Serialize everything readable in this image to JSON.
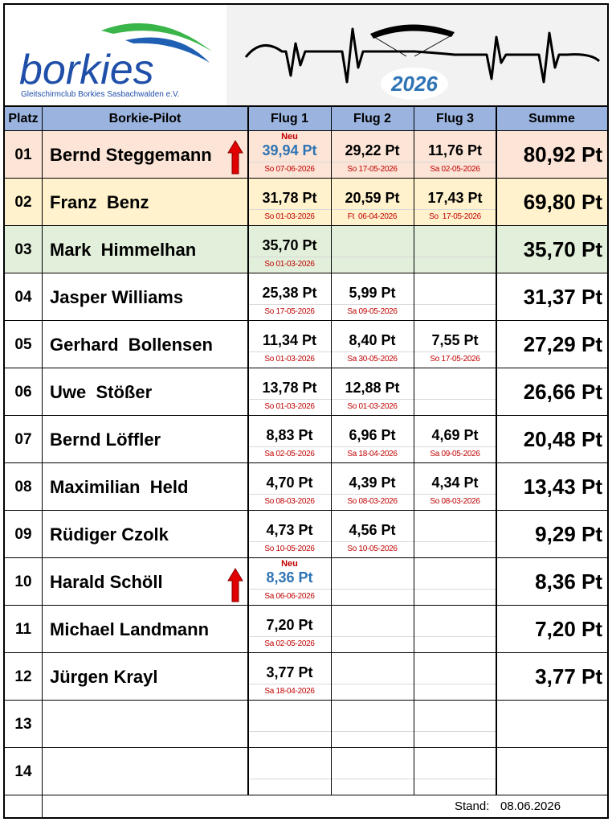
{
  "logo": {
    "name": "borkies",
    "subtitle": "Gleitschirmclub Borkies Sasbachwalden e.V.",
    "year": "2026"
  },
  "table": {
    "headers": [
      "Platz",
      "Borkie-Pilot",
      "Flug 1",
      "Flug 2",
      "Flug 3",
      "Summe"
    ],
    "rows": [
      {
        "platz": "01",
        "pilot": "Bernd Steggemann",
        "flights": [
          {
            "note": "Neu",
            "points": "39,94 Pt",
            "date": "So 07-06-2026"
          },
          {
            "points": "29,22 Pt",
            "date": "So 17-05-2026"
          },
          {
            "points": "11,76 Pt",
            "date": "Sa 02-05-2026"
          }
        ],
        "summe": "80,92 Pt"
      },
      {
        "platz": "02",
        "pilot": "Franz  Benz",
        "flights": [
          {
            "points": "31,78 Pt",
            "date": "So 01-03-2026"
          },
          {
            "points": "20,59 Pt",
            "date": "Ft  06-04-2026"
          },
          {
            "points": "17,43 Pt",
            "date": "So  17-05-2026"
          }
        ],
        "summe": "69,80 Pt"
      },
      {
        "platz": "03",
        "pilot": "Mark  Himmelhan",
        "flights": [
          {
            "points": "35,70 Pt",
            "date": "So 01-03-2026"
          }
        ],
        "summe": "35,70 Pt"
      },
      {
        "platz": "04",
        "pilot": "Jasper Williams",
        "flights": [
          {
            "points": "25,38 Pt",
            "date": "So 17-05-2026"
          },
          {
            "points": "5,99 Pt",
            "date": "Sa 09-05-2026"
          }
        ],
        "summe": "31,37 Pt"
      },
      {
        "platz": "05",
        "pilot": "Gerhard  Bollensen",
        "flights": [
          {
            "points": "11,34 Pt",
            "date": "So 01-03-2026"
          },
          {
            "points": "8,40 Pt",
            "date": "Sa 30-05-2026"
          },
          {
            "points": "7,55 Pt",
            "date": "So 17-05-2026"
          }
        ],
        "summe": "27,29 Pt"
      },
      {
        "platz": "06",
        "pilot": "Uwe  Stößer",
        "flights": [
          {
            "points": "13,78 Pt",
            "date": "So 01-03-2026"
          },
          {
            "points": "12,88 Pt",
            "date": "So 01-03-2026"
          }
        ],
        "summe": "26,66 Pt"
      },
      {
        "platz": "07",
        "pilot": "Bernd Löffler",
        "flights": [
          {
            "points": "8,83 Pt",
            "date": "Sa 02-05-2026"
          },
          {
            "points": "6,96 Pt",
            "date": "Sa 18-04-2026"
          },
          {
            "points": "4,69 Pt",
            "date": "Sa 09-05-2026"
          }
        ],
        "summe": "20,48 Pt"
      },
      {
        "platz": "08",
        "pilot": "Maximilian  Held",
        "flights": [
          {
            "points": "4,70 Pt",
            "date": "So 08-03-2026"
          },
          {
            "points": "4,39 Pt",
            "date": "So 08-03-2026"
          },
          {
            "points": "4,34 Pt",
            "date": "So 08-03-2026"
          }
        ],
        "summe": "13,43 Pt"
      },
      {
        "platz": "09",
        "pilot": "Rüdiger Czolk",
        "flights": [
          {
            "points": "4,73 Pt",
            "date": "So 10-05-2026"
          },
          {
            "points": "4,56 Pt",
            "date": "So 10-05-2026"
          }
        ],
        "summe": "9,29 Pt"
      },
      {
        "platz": "10",
        "pilot": "Harald Schöll",
        "flights": [
          {
            "note": "Neu",
            "points": "8,36 Pt",
            "date": "Sa 06-06-2026"
          }
        ],
        "summe": "8,36 Pt"
      },
      {
        "platz": "11",
        "pilot": "Michael Landmann",
        "flights": [
          {
            "points": "7,20 Pt",
            "date": "Sa 02-05-2026"
          }
        ],
        "summe": "7,20 Pt"
      },
      {
        "platz": "12",
        "pilot": "Jürgen Krayl",
        "flights": [
          {
            "points": "3,77 Pt",
            "date": "Sa 18-04-2026"
          }
        ],
        "summe": "3,77 Pt"
      },
      {
        "platz": "13"
      },
      {
        "platz": "14"
      }
    ]
  },
  "footer": {
    "label": "Stand:",
    "date": "08.06.2026"
  }
}
